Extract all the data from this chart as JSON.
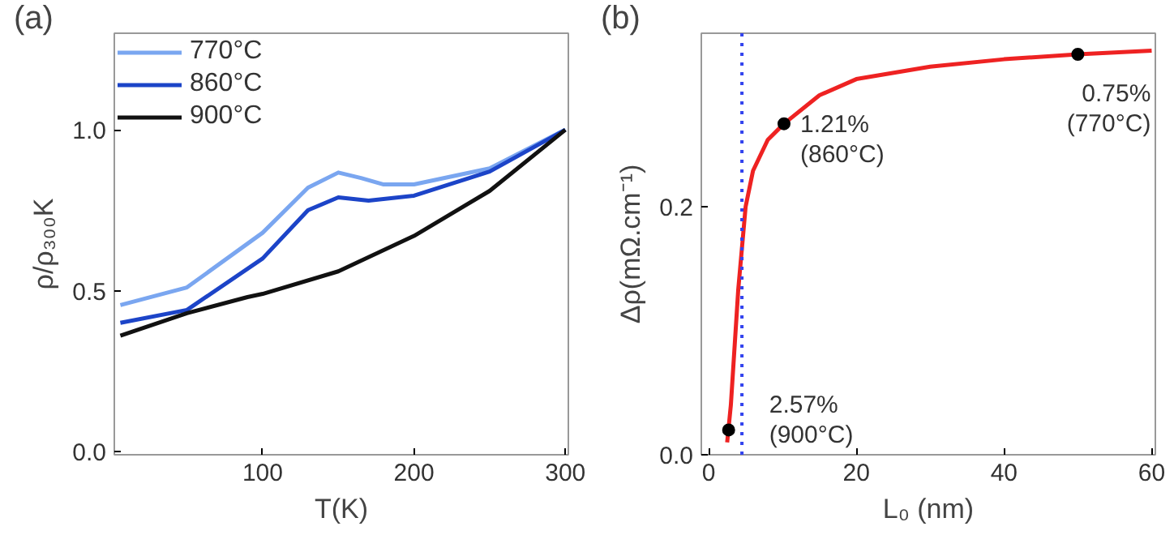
{
  "chart_data": [
    {
      "type": "line",
      "title": "(a)",
      "xlabel": "T(K)",
      "ylabel": "ρ/ρ₃₀₀K",
      "xlim": [
        2,
        302
      ],
      "ylim": [
        -0.01,
        1.3
      ],
      "xticks": [
        100,
        200,
        300
      ],
      "yticks": [
        {
          "value": 0,
          "label": "0.0"
        },
        {
          "value": 0.5,
          "label": "0.5"
        },
        {
          "value": 1,
          "label": "1.0"
        }
      ],
      "grid": false,
      "legend": "top left",
      "series": [
        {
          "name": "770°C",
          "color": "#7aa6f0",
          "x": [
            6,
            50,
            100,
            130,
            150,
            165,
            180,
            200,
            250,
            300
          ],
          "values": [
            0.455,
            0.51,
            0.68,
            0.82,
            0.867,
            0.85,
            0.83,
            0.83,
            0.88,
            1.0
          ]
        },
        {
          "name": "860°C",
          "color": "#1c44c8",
          "x": [
            6,
            50,
            100,
            130,
            150,
            170,
            200,
            250,
            300
          ],
          "values": [
            0.4,
            0.44,
            0.6,
            0.75,
            0.79,
            0.78,
            0.795,
            0.87,
            1.0
          ]
        },
        {
          "name": "900°C",
          "color": "#111111",
          "x": [
            6,
            50,
            90,
            100,
            150,
            200,
            250,
            300
          ],
          "values": [
            0.36,
            0.43,
            0.48,
            0.49,
            0.56,
            0.67,
            0.81,
            1.0
          ]
        }
      ]
    },
    {
      "type": "line",
      "title": "(b)",
      "xlabel": "L₀ (nm)",
      "ylabel": "Δρ(mΩ.cm⁻¹)",
      "xlim": [
        -1,
        60.5
      ],
      "ylim": [
        0,
        0.34
      ],
      "xticks": [
        0,
        20,
        40,
        60
      ],
      "yticks": [
        {
          "value": 0,
          "label": "0.0"
        },
        {
          "value": 0.2,
          "label": "0.2"
        }
      ],
      "grid": false,
      "ref_lines": [
        {
          "axis": "x",
          "value": 4.5,
          "label": null,
          "color": "#3344ee",
          "line_style": "dotted"
        }
      ],
      "series": [
        {
          "type": "line",
          "color": "#ee2222",
          "x": [
            2.5,
            3,
            4,
            5,
            6,
            8,
            10.2,
            15,
            20,
            30,
            40,
            50,
            60
          ],
          "values": [
            0.01,
            0.04,
            0.133,
            0.2,
            0.229,
            0.254,
            0.267,
            0.29,
            0.303,
            0.313,
            0.319,
            0.323,
            0.326
          ]
        },
        {
          "type": "scatter",
          "color": "#000000",
          "marker": "circle",
          "x": [
            2.7,
            10.2,
            50
          ],
          "values": [
            0.02,
            0.267,
            0.323
          ]
        }
      ],
      "annotations": [
        {
          "text": "2.57%\n(900°C)",
          "x": 2.7,
          "y": 0.02
        },
        {
          "text": "1.21%\n(860°C)",
          "x": 10.2,
          "y": 0.267
        },
        {
          "text": "0.75%\n(770°C)",
          "x": 50,
          "y": 0.323
        }
      ]
    }
  ]
}
